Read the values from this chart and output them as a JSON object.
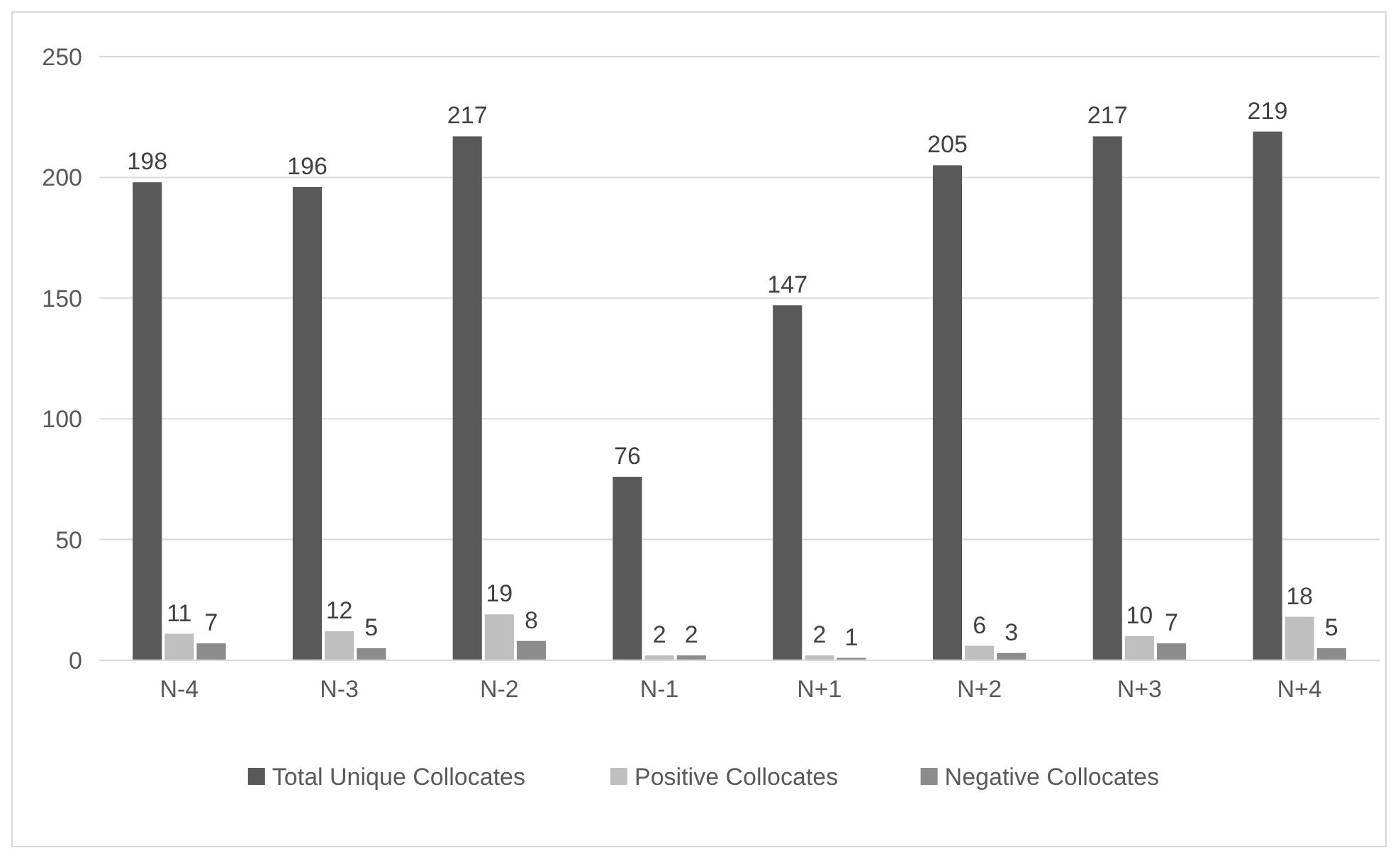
{
  "chart_data": {
    "type": "bar",
    "categories": [
      "N-4",
      "N-3",
      "N-2",
      "N-1",
      "N+1",
      "N+2",
      "N+3",
      "N+4"
    ],
    "series": [
      {
        "name": "Total Unique Collocates",
        "color": "#595959",
        "values": [
          198,
          196,
          217,
          76,
          147,
          205,
          217,
          219
        ]
      },
      {
        "name": "Positive Collocates",
        "color": "#bfbfbf",
        "values": [
          11,
          12,
          19,
          2,
          2,
          6,
          10,
          18
        ]
      },
      {
        "name": "Negative Collocates",
        "color": "#8c8c8c",
        "values": [
          7,
          5,
          8,
          2,
          1,
          3,
          7,
          5
        ]
      }
    ],
    "ylim": [
      0,
      250
    ],
    "yticks": [
      0,
      50,
      100,
      150,
      200,
      250
    ],
    "grid": "y",
    "legend": "bottom",
    "data_labels": true
  }
}
